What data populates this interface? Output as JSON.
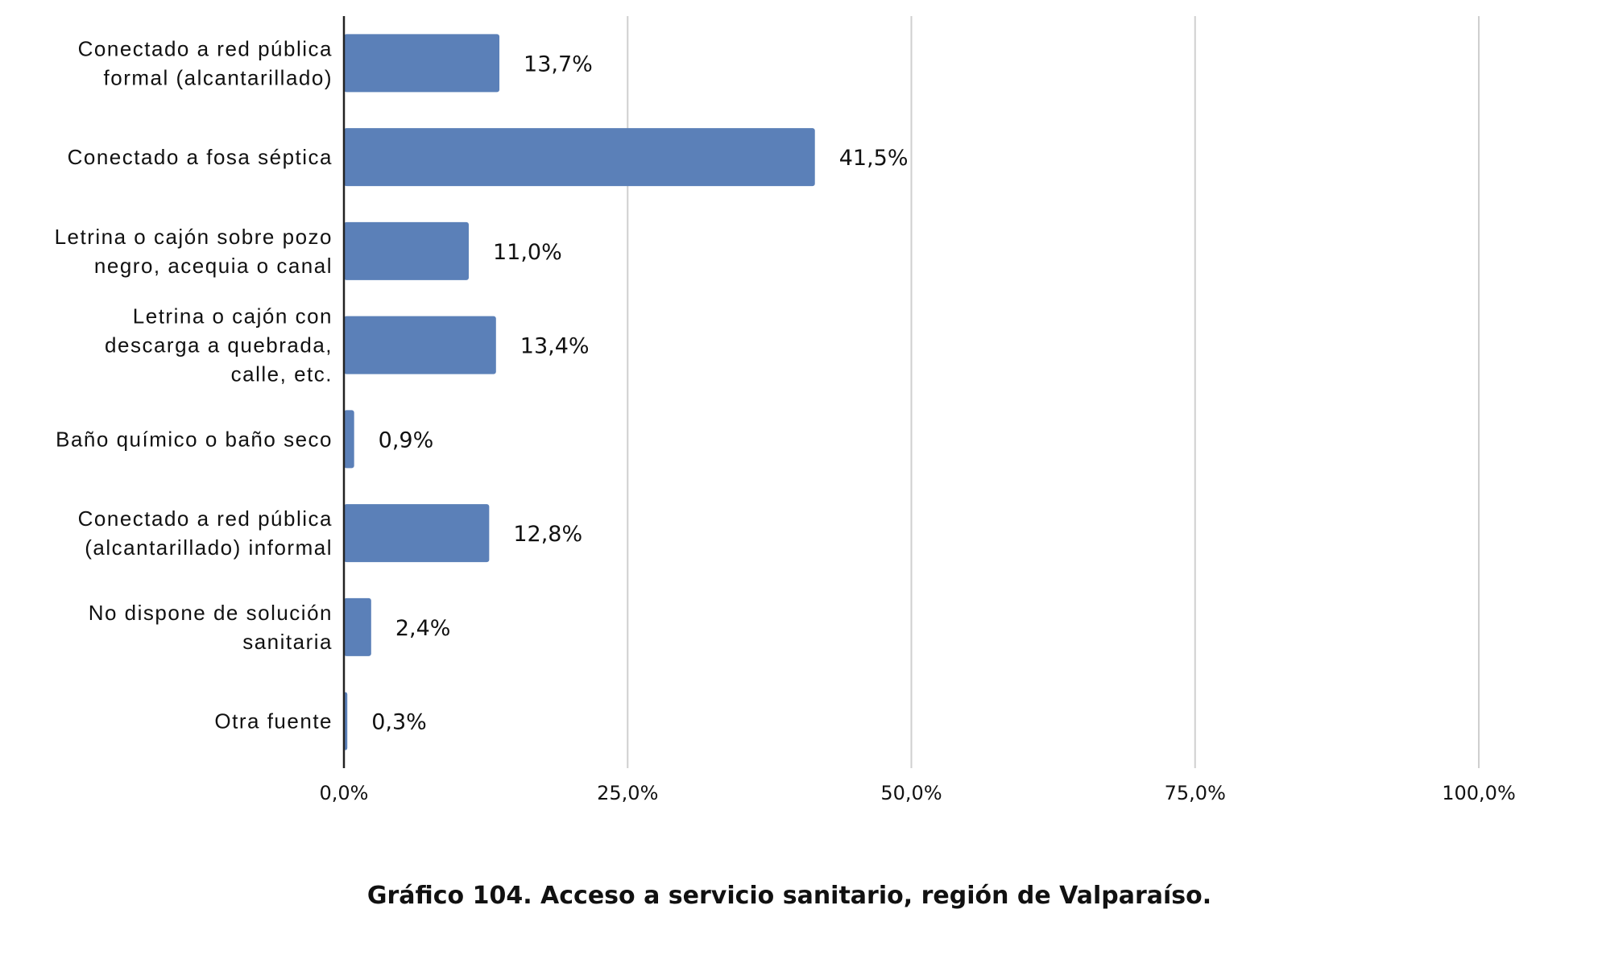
{
  "chart_data": {
    "type": "bar",
    "orientation": "horizontal",
    "categories": [
      [
        "Conectado a red pública",
        "formal (alcantarillado)"
      ],
      [
        "Conectado a fosa séptica"
      ],
      [
        "Letrina o cajón sobre pozo",
        "negro, acequia o canal"
      ],
      [
        "Letrina o cajón con",
        "descarga a quebrada,",
        "calle, etc."
      ],
      [
        "Baño químico o baño seco"
      ],
      [
        "Conectado a red pública",
        "(alcantarillado) informal"
      ],
      [
        "No dispone de solución",
        "sanitaria"
      ],
      [
        "Otra fuente"
      ]
    ],
    "values": [
      13.7,
      41.5,
      11.0,
      13.4,
      0.9,
      12.8,
      2.4,
      0.3
    ],
    "value_labels": [
      "13,7%",
      "41,5%",
      "11,0%",
      "13,4%",
      "0,9%",
      "12,8%",
      "2,4%",
      "0,3%"
    ],
    "xlim": [
      0,
      100
    ],
    "xticks": [
      0,
      25,
      50,
      75,
      100
    ],
    "xtick_labels": [
      "0,0%",
      "25,0%",
      "50,0%",
      "75,0%",
      "100,0%"
    ],
    "grid": "vertical",
    "bar_color": "#5b80b8",
    "grid_color": "#cfcfcf",
    "axis_color": "#222222",
    "title": "",
    "xlabel": "",
    "ylabel": ""
  },
  "caption": "Gráfico 104. Acceso a servicio sanitario, región de Valparaíso."
}
